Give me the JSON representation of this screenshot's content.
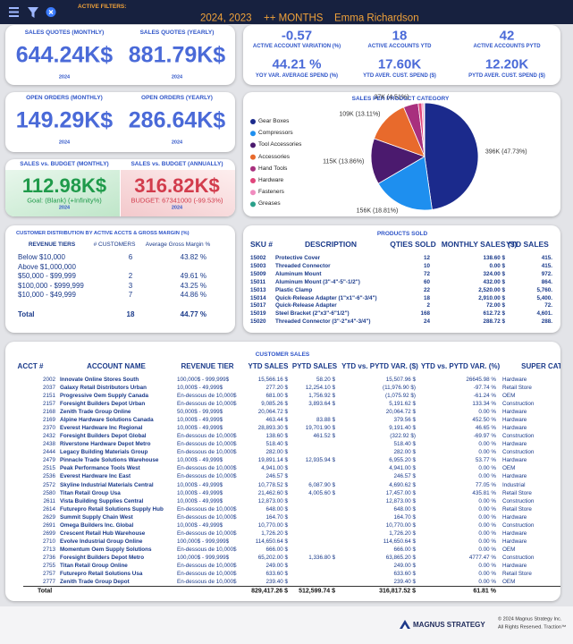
{
  "header": {
    "active_filters_label": "ACTIVE FILTERS:",
    "filters": [
      "2024, 2023",
      "++ MONTHS",
      "Emma Richardson"
    ]
  },
  "sales_quotes": {
    "items": [
      {
        "title": "SALES QUOTES (MONTHLY)",
        "value": "644.24K$",
        "year": "2024"
      },
      {
        "title": "SALES QUOTES (YEARLY)",
        "value": "881.79K$",
        "year": "2024"
      }
    ]
  },
  "active_accounts": {
    "items": [
      {
        "value": "-0.57",
        "label": "ACTIVE ACCOUNT VARIATION (%)"
      },
      {
        "value": "18",
        "label": "ACTIVE ACCOUNTS YTD"
      },
      {
        "value": "42",
        "label": "ACTIVE ACCOUNTS PYTD"
      },
      {
        "value": "44.21 %",
        "label": "YOY VAR. AVERAGE SPEND (%)"
      },
      {
        "value": "17.60K",
        "label": "YTD AVER. CUST. SPEND ($)"
      },
      {
        "value": "12.20K",
        "label": "PYTD AVER. CUST. SPEND ($)"
      }
    ]
  },
  "open_orders": {
    "items": [
      {
        "title": "OPEN ORDERS (MONTHLY)",
        "value": "149.29K$",
        "year": "2024"
      },
      {
        "title": "OPEN ORDERS (YEARLY)",
        "value": "286.64K$",
        "year": "2024"
      }
    ]
  },
  "sales_vs_budget": {
    "items": [
      {
        "title": "SALES vs. BUDGET (MONTHLY)",
        "value": "112.98K$",
        "note": "Goal: (Blank) (+Infinity%)",
        "year": "2024"
      },
      {
        "title": "SALES vs. BUDGET (ANNUALLY)",
        "value": "316.82K$",
        "note": "BUDGET: 67341000 (-99.53%)",
        "year": "2024"
      }
    ]
  },
  "chart_data": {
    "type": "pie",
    "title": "SALES PER PRODUCT CATEGORY",
    "categories": [
      "Gear Boxes",
      "Compressors",
      "Tool Accessories",
      "Accessories",
      "Hand Tools",
      "Hardware",
      "Fasteners",
      "Greases"
    ],
    "values": [
      396,
      156,
      115,
      109,
      37,
      9,
      5,
      2
    ],
    "value_labels": [
      "396K (47.73%)",
      "156K (18.81%)",
      "115K (13.86%)",
      "109K (13.11%)",
      "37K (4.51%)",
      null,
      null,
      null
    ],
    "colors": [
      "#1b2a8c",
      "#1e8fef",
      "#4b1a6e",
      "#e86a2c",
      "#a8307e",
      "#e0457b",
      "#f08cbf",
      "#2aa08a"
    ],
    "legend": "left"
  },
  "customer_distribution": {
    "title": "CUSTOMER DISTRIBUTION BY ACTIVE ACCTS & GROSS MARGIN (%)",
    "columns": [
      "REVENUE TIERS",
      "# CUSTOMERS",
      "Average Gross Margin %"
    ],
    "rows": [
      [
        "Below $10,000",
        "6",
        "43.82 %"
      ],
      [
        "Above $1,000,000",
        null,
        null
      ],
      [
        "$50,000 - $99,999",
        "2",
        "49.61 %"
      ],
      [
        "$100,000 - $999,999",
        "3",
        "43.25 %"
      ],
      [
        "$10,000 - $49,999",
        "7",
        "44.86 %"
      ]
    ],
    "total": [
      "Total",
      "18",
      "44.77 %"
    ]
  },
  "products_sold": {
    "title": "PRODUCTS SOLD",
    "columns": [
      "SKU #",
      "DESCRIPTION",
      "QTIES SOLD",
      "MONTHLY SALES ($)",
      "YTD SALES"
    ],
    "rows": [
      [
        "15002",
        "Protective Cover",
        "12",
        "138.60 $",
        "415."
      ],
      [
        "15003",
        "Threaded Connector",
        "10",
        "0.00 $",
        "415."
      ],
      [
        "15009",
        "Aluminum Mount",
        "72",
        "324.00 $",
        "972."
      ],
      [
        "15011",
        "Aluminum Mount (3\"-4\"-5\"-1/2\")",
        "60",
        "432.00 $",
        "864."
      ],
      [
        "15013",
        "Plastic Clamp",
        "22",
        "2,520.00 $",
        "5,760."
      ],
      [
        "15014",
        "Quick-Release Adapter (1\"x1\"-6\"-3/4\")",
        "18",
        "2,910.00 $",
        "5,400."
      ],
      [
        "15017",
        "Quick-Release Adapter",
        "2",
        "72.00 $",
        "72."
      ],
      [
        "15019",
        "Steel Bracket (2\"x3\"-6\"1/2\")",
        "168",
        "612.72 $",
        "4,601."
      ],
      [
        "15020",
        "Threaded Connector (3\"-2\"x4\"-3/4\")",
        "24",
        "288.72 $",
        "288."
      ]
    ]
  },
  "customer_sales": {
    "title": "CUSTOMER SALES",
    "columns": [
      "ACCT #",
      "ACCOUNT NAME",
      "REVENUE TIER",
      "YTD SALES",
      "PYTD SALES",
      "YTD vs. PYTD VAR. ($)",
      "YTD vs. PYTD VAR. (%)",
      "SUPER CAT"
    ],
    "rows": [
      [
        "2002",
        "Innovate Online Stores South",
        "100,000$ - 999,999$",
        "15,566.16 $",
        "58.20 $",
        "15,507.96 $",
        "26645.98 %",
        "Hardware"
      ],
      [
        "2037",
        "Galaxy Retail Distributors Urban",
        "10,000$ - 49,999$",
        "277.20 $",
        "12,254.10 $",
        "(11,976.90 $)",
        "-97.74 %",
        "Retail Store"
      ],
      [
        "2151",
        "Progressive Oem Supply Canada",
        "En-dessous de 10,000$",
        "681.00 $",
        "1,756.92 $",
        "(1,075.92 $)",
        "-61.24 %",
        "OEM"
      ],
      [
        "2157",
        "Foresight Builders Depot Urban",
        "En-dessous de 10,000$",
        "9,085.26 $",
        "3,893.64 $",
        "5,191.62 $",
        "133.34 %",
        "Construction"
      ],
      [
        "2168",
        "Zenith Trade Group Online",
        "50,000$ - 99,999$",
        "20,064.72 $",
        null,
        "20,064.72 $",
        "0.00 %",
        "Hardware"
      ],
      [
        "2169",
        "Alpine Hardware Solutions Canada",
        "10,000$ - 49,999$",
        "463.44 $",
        "83.88 $",
        "379.56 $",
        "452.50 %",
        "Hardware"
      ],
      [
        "2370",
        "Everest Hardware Inc Regional",
        "10,000$ - 49,999$",
        "28,893.30 $",
        "19,701.90 $",
        "9,191.40 $",
        "46.65 %",
        "Hardware"
      ],
      [
        "2432",
        "Foresight Builders Depot Global",
        "En-dessous de 10,000$",
        "138.60 $",
        "461.52 $",
        "(322.92 $)",
        "-69.97 %",
        "Construction"
      ],
      [
        "2438",
        "Riverstone Hardware Depot Metro",
        "En-dessous de 10,000$",
        "518.40 $",
        null,
        "518.40 $",
        "0.00 %",
        "Hardware"
      ],
      [
        "2444",
        "Legacy Building Materials Group",
        "En-dessous de 10,000$",
        "282.00 $",
        null,
        "282.00 $",
        "0.00 %",
        "Construction"
      ],
      [
        "2479",
        "Pinnacle Trade Solutions Warehouse",
        "10,000$ - 49,999$",
        "19,891.14 $",
        "12,935.94 $",
        "6,955.20 $",
        "53.77 %",
        "Hardware"
      ],
      [
        "2515",
        "Peak Performance Tools West",
        "En-dessous de 10,000$",
        "4,941.00 $",
        null,
        "4,941.00 $",
        "0.00 %",
        "OEM"
      ],
      [
        "2536",
        "Everest Hardware Inc East",
        "En-dessous de 10,000$",
        "246.57 $",
        null,
        "246.57 $",
        "0.00 %",
        "Hardware"
      ],
      [
        "2572",
        "Skyline Industrial Materials Central",
        "10,000$ - 49,999$",
        "10,778.52 $",
        "6,087.90 $",
        "4,690.62 $",
        "77.05 %",
        "Industrial"
      ],
      [
        "2580",
        "Titan Retail Group Usa",
        "10,000$ - 49,999$",
        "21,462.60 $",
        "4,005.60 $",
        "17,457.00 $",
        "435.81 %",
        "Retail Store"
      ],
      [
        "2611",
        "Vista Building Supplies Central",
        "10,000$ - 49,999$",
        "12,873.00 $",
        null,
        "12,873.00 $",
        "0.00 %",
        "Construction"
      ],
      [
        "2614",
        "Futurepro Retail Solutions Supply Hub",
        "En-dessous de 10,000$",
        "648.00 $",
        null,
        "648.00 $",
        "0.00 %",
        "Retail Store"
      ],
      [
        "2629",
        "Summit Supply Chain West",
        "En-dessous de 10,000$",
        "164.70 $",
        null,
        "164.70 $",
        "0.00 %",
        "Hardware"
      ],
      [
        "2691",
        "Omega Builders Inc. Global",
        "10,000$ - 49,999$",
        "10,770.00 $",
        null,
        "10,770.00 $",
        "0.00 %",
        "Construction"
      ],
      [
        "2699",
        "Crescent Retail Hub Warehouse",
        "En-dessous de 10,000$",
        "1,726.20 $",
        null,
        "1,726.20 $",
        "0.00 %",
        "Hardware"
      ],
      [
        "2710",
        "Evolve Industrial Group Online",
        "100,000$ - 999,999$",
        "114,650.64 $",
        null,
        "114,650.64 $",
        "0.00 %",
        "Hardware"
      ],
      [
        "2713",
        "Momentum Oem Supply Solutions",
        "En-dessous de 10,000$",
        "666.00 $",
        null,
        "666.00 $",
        "0.00 %",
        "OEM"
      ],
      [
        "2736",
        "Foresight Builders Depot Metro",
        "100,000$ - 999,999$",
        "65,202.00 $",
        "1,336.80 $",
        "63,865.20 $",
        "4777.47 %",
        "Construction"
      ],
      [
        "2755",
        "Titan Retail Group Online",
        "En-dessous de 10,000$",
        "249.00 $",
        null,
        "249.00 $",
        "0.00 %",
        "Hardware"
      ],
      [
        "2757",
        "Futurepro Retail Solutions Usa",
        "En-dessous de 10,000$",
        "633.60 $",
        null,
        "633.60 $",
        "0.00 %",
        "Retail Store"
      ],
      [
        "2777",
        "Zenith Trade Group Depot",
        "En-dessous de 10,000$",
        "239.40 $",
        null,
        "239.40 $",
        "0.00 %",
        "OEM"
      ]
    ],
    "total": [
      "Total",
      null,
      null,
      "829,417.26 $",
      "512,599.74 $",
      "316,817.52 $",
      "61.81 %",
      null
    ]
  },
  "footer": {
    "brand": "MAGNUS STRATEGY",
    "copyright": "© 2024 Magnus Strategy Inc.",
    "rights": "All Rights Reserved. Traction™"
  }
}
